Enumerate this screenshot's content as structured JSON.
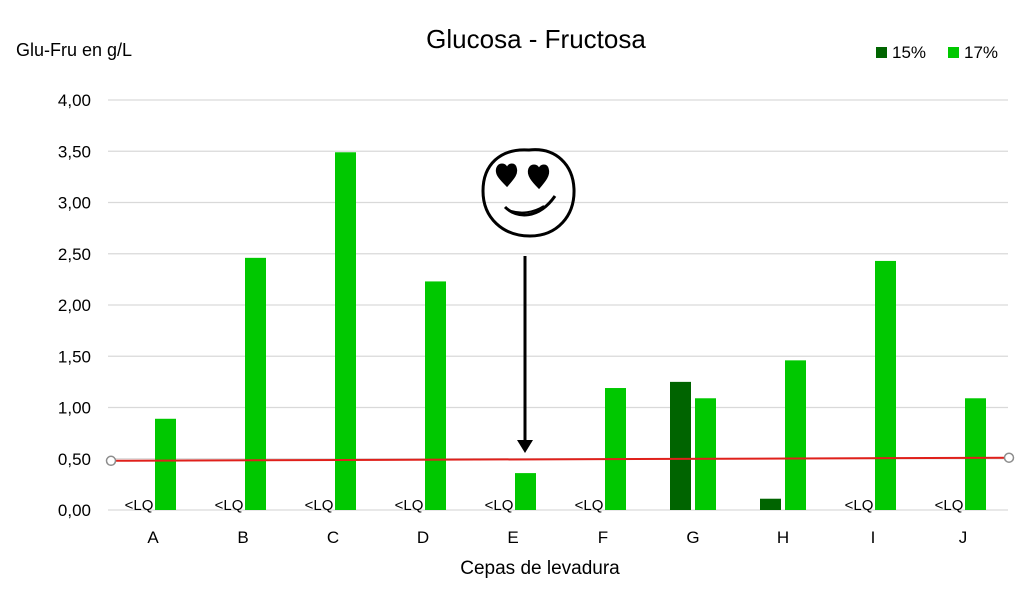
{
  "chart_data": {
    "type": "bar",
    "title": "Glucosa - Fructosa",
    "ylabel": "Glu-Fru en g/L",
    "xlabel": "Cepas de levadura",
    "categories": [
      "A",
      "B",
      "C",
      "D",
      "E",
      "F",
      "G",
      "H",
      "I",
      "J"
    ],
    "series": [
      {
        "name": "15%",
        "color": "#006400",
        "values": [
          null,
          null,
          null,
          null,
          null,
          null,
          1.25,
          0.11,
          null,
          null
        ]
      },
      {
        "name": "17%",
        "color": "#00C800",
        "values": [
          0.89,
          2.46,
          3.49,
          2.23,
          0.36,
          1.19,
          1.09,
          1.46,
          2.43,
          1.09
        ]
      }
    ],
    "below_lq_label": "<LQ",
    "below_lq_categories": [
      "A",
      "B",
      "C",
      "D",
      "E",
      "F",
      "I",
      "J"
    ],
    "ylim": [
      0,
      4
    ],
    "yticks": [
      "0,00",
      "0,50",
      "1,00",
      "1,50",
      "2,00",
      "2,50",
      "3,00",
      "3,50",
      "4,00"
    ],
    "reference_line": {
      "value_start": 0.48,
      "value_end": 0.51,
      "color": "#E0201B"
    },
    "annotation": {
      "type": "smiley-with-arrow",
      "points_to": "E"
    },
    "grid": true,
    "legend_position": "top-right"
  }
}
